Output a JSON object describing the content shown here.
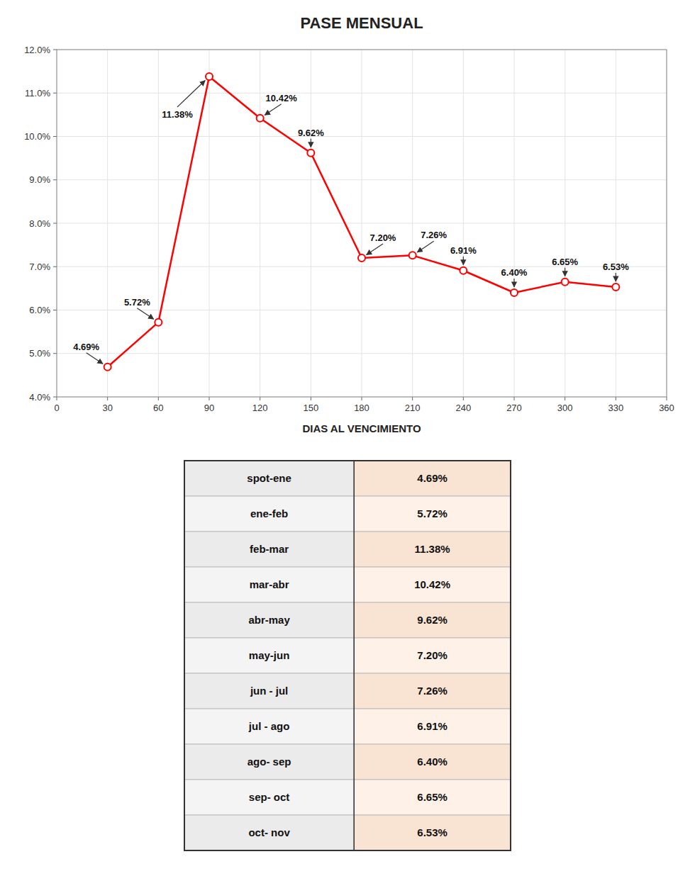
{
  "chart_data": [
    {
      "type": "line",
      "title": "PASE MENSUAL",
      "xlabel": "DIAS AL VENCIMIENTO",
      "x": [
        30,
        60,
        90,
        120,
        150,
        180,
        210,
        240,
        270,
        300,
        330
      ],
      "values": [
        4.69,
        5.72,
        11.38,
        10.42,
        9.62,
        7.2,
        7.26,
        6.91,
        6.4,
        6.65,
        6.53
      ],
      "value_labels": [
        "4.69%",
        "5.72%",
        "11.38%",
        "10.42%",
        "9.62%",
        "7.20%",
        "7.26%",
        "6.91%",
        "6.40%",
        "6.65%",
        "6.53%"
      ],
      "data_labels": true,
      "color": "#FF0000",
      "marker": "circle",
      "xlim": [
        0,
        360
      ],
      "xticks": [
        0,
        30,
        60,
        90,
        120,
        150,
        180,
        210,
        240,
        270,
        300,
        330,
        360
      ],
      "ylim": [
        4.0,
        12.0
      ],
      "yticks": [
        {
          "value": 4.0,
          "label": "4.0%"
        },
        {
          "value": 5.0,
          "label": "5.0%"
        },
        {
          "value": 6.0,
          "label": "6.0%"
        },
        {
          "value": 7.0,
          "label": "7.0%"
        },
        {
          "value": 8.0,
          "label": "8.0%"
        },
        {
          "value": 9.0,
          "label": "9.0%"
        },
        {
          "value": 10.0,
          "label": "10.0%"
        },
        {
          "value": 11.0,
          "label": "11.0%"
        },
        {
          "value": 12.0,
          "label": "12.0%"
        }
      ],
      "grid": true
    },
    {
      "type": "table",
      "categories": [
        "spot-ene",
        "ene-feb",
        "feb-mar",
        "mar-abr",
        "abr-may",
        "may-jun",
        "jun - jul",
        "jul - ago",
        "ago- sep",
        "sep- oct",
        "oct- nov"
      ],
      "values": [
        4.69,
        5.72,
        11.38,
        10.42,
        9.62,
        7.2,
        7.26,
        6.91,
        6.4,
        6.65,
        6.53
      ],
      "value_labels": [
        "4.69%",
        "5.72%",
        "11.38%",
        "10.42%",
        "9.62%",
        "7.20%",
        "7.26%",
        "6.91%",
        "6.40%",
        "6.65%",
        "6.53%"
      ]
    }
  ]
}
